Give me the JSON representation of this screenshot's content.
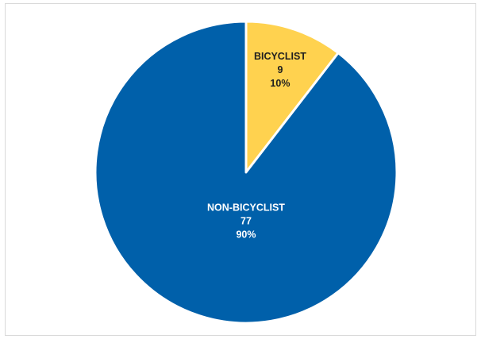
{
  "chart_data": {
    "type": "pie",
    "start_angle_deg": 0,
    "direction": "clockwise",
    "slices": [
      {
        "label": "BICYCLIST",
        "value": 9,
        "percent": "10%",
        "color": "#FFD24F",
        "label_color": "#1F1F1F"
      },
      {
        "label": "NON-BICYCLIST",
        "value": 77,
        "percent": "90%",
        "color": "#0060AA",
        "label_color": "#FFFFFF"
      }
    ],
    "slice_border_color": "#FFFFFF",
    "legend": "none",
    "title": ""
  }
}
